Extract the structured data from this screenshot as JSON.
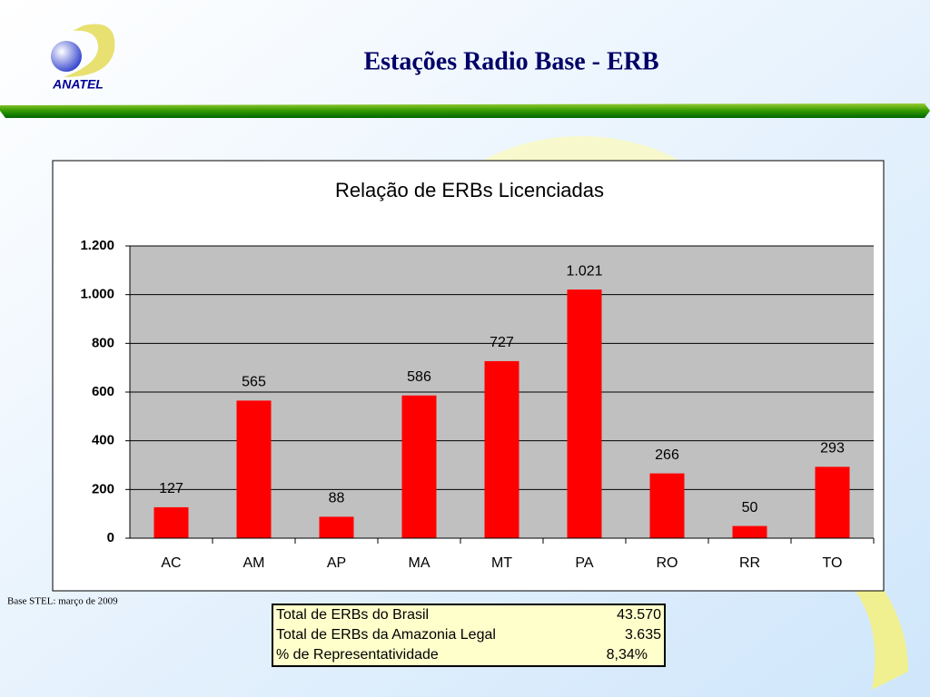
{
  "header": {
    "title": "Estações Radio Base - ERB",
    "logo": "ANATEL"
  },
  "chart_data": {
    "type": "bar",
    "title": "Relação de ERBs Licenciadas",
    "categories": [
      "AC",
      "AM",
      "AP",
      "MA",
      "MT",
      "PA",
      "RO",
      "RR",
      "TO"
    ],
    "values": [
      127,
      565,
      88,
      586,
      727,
      1021,
      266,
      50,
      293
    ],
    "value_labels": [
      "127",
      "565",
      "88",
      "586",
      "727",
      "1.021",
      "266",
      "50",
      "293"
    ],
    "color": "#ff0000",
    "ylim": [
      0,
      1200
    ],
    "yticks": [
      0,
      200,
      400,
      600,
      800,
      {
        "value": 1000,
        "label": "1.000"
      },
      {
        "value": 1200,
        "label": "1.200"
      }
    ],
    "grid": true
  },
  "source": "Base STEL: março de 2009",
  "table": {
    "rows": [
      [
        "Total de ERBs do Brasil",
        "43.570"
      ],
      [
        "Total de ERBs  da Amazonia Legal",
        "3.635"
      ],
      [
        "% de Representatividade",
        "8,34%"
      ]
    ]
  }
}
